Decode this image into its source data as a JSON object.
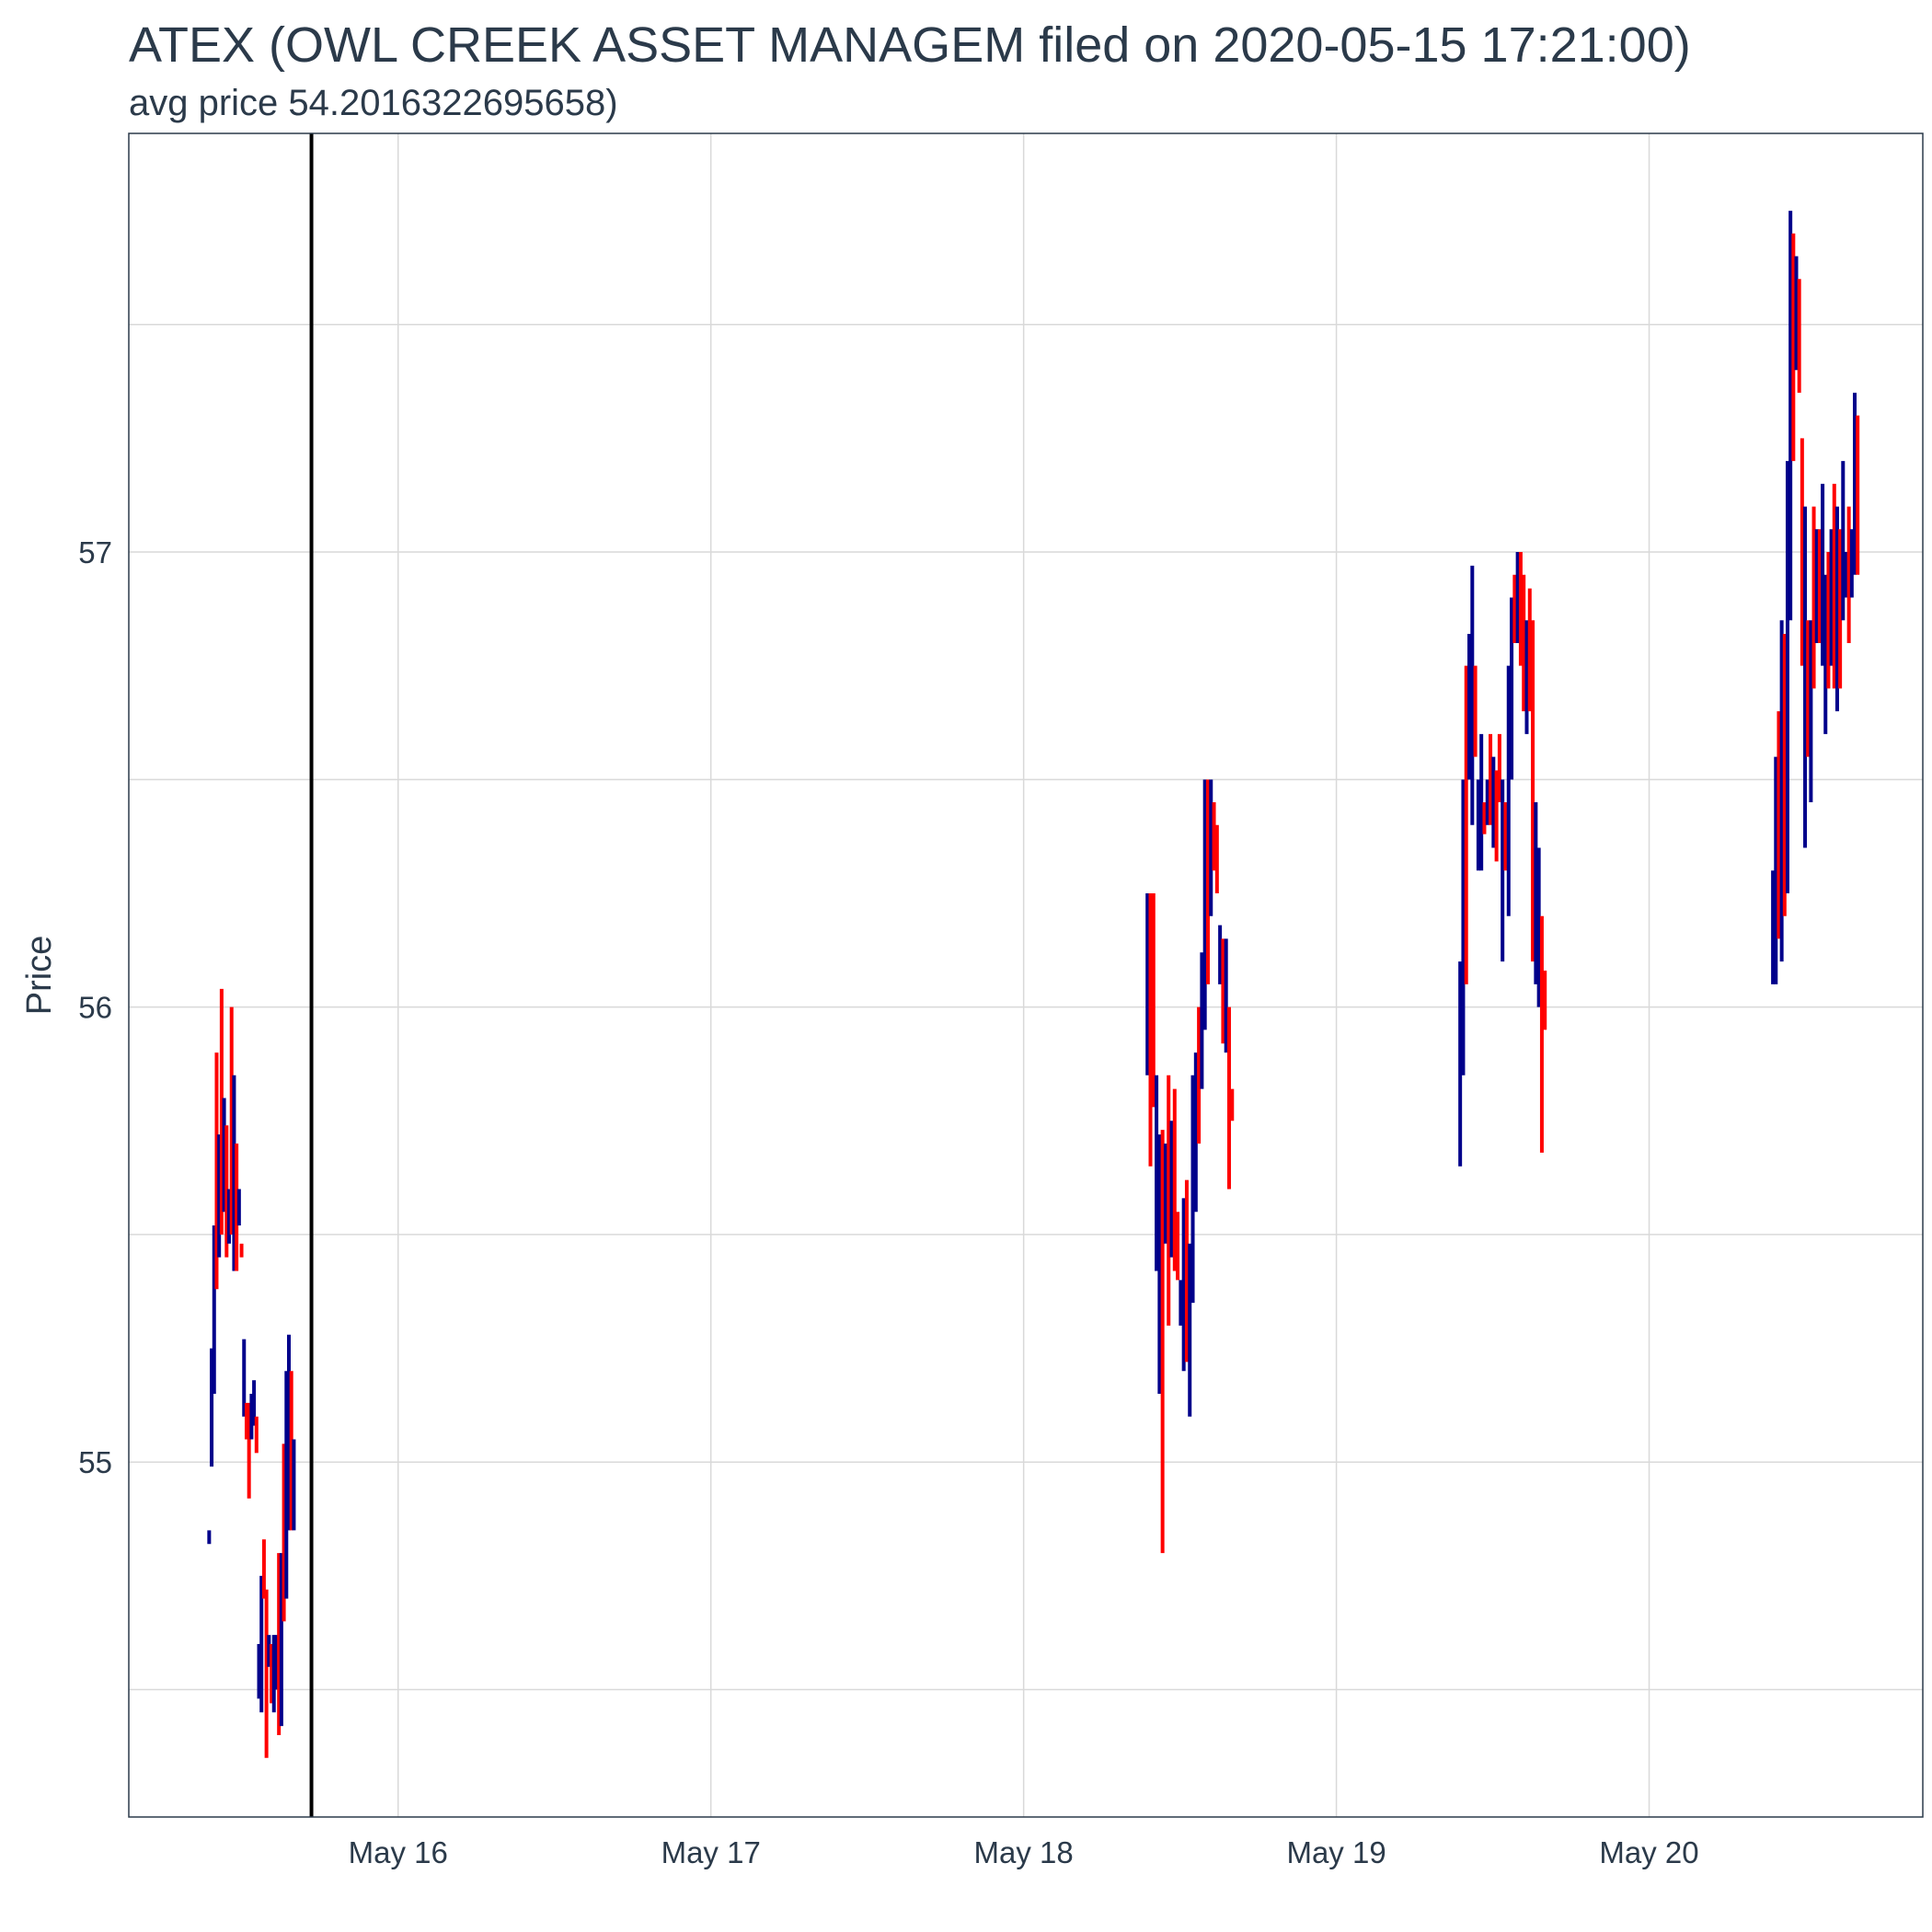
{
  "chart_data": {
    "type": "candlestick",
    "title": "ATEX (OWL CREEK ASSET MANAGEM filed on 2020-05-15 17:21:00)",
    "subtitle": "avg price 54.2016322695658)",
    "ylabel": "Price",
    "xlabel": "",
    "ylim": [
      54.22,
      57.92
    ],
    "xlim": [
      "2020-05-15 03:20",
      "2020-05-20 21:00"
    ],
    "x_ticks": [
      "2020-05-16 00:00",
      "2020-05-17 00:00",
      "2020-05-18 00:00",
      "2020-05-19 00:00",
      "2020-05-20 00:00"
    ],
    "x_tick_labels": [
      "May 16",
      "May 17",
      "May 18",
      "May 19",
      "May 20"
    ],
    "y_ticks": [
      55,
      56,
      57
    ],
    "y_tick_labels": [
      "55",
      "56",
      "57"
    ],
    "grid": true,
    "filing_marker": "2020-05-15 17:21",
    "colors": {
      "up": "#00008b",
      "down": "#ff0000",
      "marker": "#000000",
      "grid": "#d9d9d9",
      "frame": "#2b3a4a"
    },
    "series": [
      {
        "day": "2020-05-15",
        "start": "2020-05-15 09:30",
        "end": "2020-05-15 16:00",
        "lows": [
          54.82,
          54.99,
          55.15,
          55.38,
          55.45,
          55.5,
          55.55,
          55.45,
          55.48,
          55.5,
          55.42,
          55.42,
          55.52,
          55.48,
          55.1,
          55.05,
          54.92,
          55.05,
          55.08,
          55.02,
          54.48,
          54.45,
          54.7,
          54.35,
          54.62,
          54.47,
          54.45,
          54.5,
          54.4,
          54.42,
          54.65,
          54.7,
          54.85,
          54.85,
          54.85
        ],
        "highs": [
          54.85,
          55.25,
          55.52,
          55.9,
          55.72,
          56.04,
          55.8,
          55.74,
          55.6,
          56.0,
          55.85,
          55.7,
          55.6,
          55.45,
          55.27,
          55.13,
          55.13,
          55.15,
          55.18,
          55.1,
          54.6,
          54.75,
          54.83,
          54.72,
          54.55,
          54.6,
          54.62,
          54.62,
          54.8,
          54.8,
          55.04,
          55.2,
          55.28,
          55.2,
          55.05
        ],
        "up": [
          1,
          1,
          1,
          0,
          1,
          0,
          1,
          0,
          1,
          0,
          1,
          0,
          1,
          0,
          1,
          0,
          0,
          1,
          1,
          0,
          1,
          1,
          0,
          0,
          1,
          0,
          1,
          1,
          0,
          1,
          0,
          1,
          1,
          0,
          1
        ]
      },
      {
        "day": "2020-05-18",
        "start": "2020-05-18 09:30",
        "end": "2020-05-18 16:00",
        "lows": [
          55.85,
          55.65,
          55.78,
          55.42,
          55.15,
          54.8,
          55.48,
          55.3,
          55.45,
          55.42,
          55.4,
          55.3,
          55.2,
          55.22,
          55.1,
          55.35,
          55.55,
          55.7,
          55.82,
          55.95,
          56.05,
          56.2,
          56.3,
          56.25,
          56.05,
          55.92,
          55.9,
          55.6,
          55.75
        ],
        "highs": [
          56.25,
          56.25,
          56.25,
          55.85,
          55.72,
          55.73,
          55.7,
          55.85,
          55.75,
          55.82,
          55.55,
          55.4,
          55.58,
          55.62,
          55.48,
          55.85,
          55.9,
          56.0,
          56.12,
          56.5,
          56.5,
          56.5,
          56.45,
          56.4,
          56.18,
          56.15,
          56.15,
          56.0,
          55.82
        ],
        "up": [
          1,
          0,
          0,
          1,
          1,
          0,
          1,
          0,
          1,
          0,
          0,
          1,
          1,
          0,
          1,
          1,
          1,
          0,
          1,
          1,
          0,
          1,
          0,
          0,
          1,
          0,
          1,
          0,
          0
        ]
      },
      {
        "day": "2020-05-19",
        "start": "2020-05-19 09:30",
        "end": "2020-05-19 16:00",
        "lows": [
          55.65,
          55.85,
          56.05,
          56.5,
          56.4,
          56.55,
          56.3,
          56.3,
          56.38,
          56.4,
          56.4,
          56.35,
          56.32,
          56.45,
          56.1,
          56.3,
          56.2,
          56.5,
          56.8,
          56.8,
          56.75,
          56.65,
          56.6,
          56.65,
          56.1,
          56.05,
          56.0,
          55.68,
          55.95
        ],
        "highs": [
          56.1,
          56.5,
          56.75,
          56.82,
          56.97,
          56.75,
          56.5,
          56.6,
          56.45,
          56.5,
          56.6,
          56.55,
          56.52,
          56.6,
          56.5,
          56.45,
          56.75,
          56.9,
          56.95,
          57.0,
          57.0,
          56.95,
          56.85,
          56.92,
          56.85,
          56.45,
          56.35,
          56.2,
          56.08
        ],
        "up": [
          1,
          1,
          0,
          1,
          1,
          0,
          1,
          1,
          0,
          1,
          0,
          1,
          0,
          0,
          1,
          0,
          1,
          1,
          0,
          1,
          0,
          0,
          1,
          0,
          0,
          1,
          1,
          0,
          0
        ]
      },
      {
        "day": "2020-05-20",
        "start": "2020-05-20 09:30",
        "end": "2020-05-20 16:00",
        "lows": [
          56.05,
          56.05,
          56.15,
          56.1,
          56.2,
          56.25,
          56.85,
          57.2,
          57.4,
          57.35,
          56.75,
          56.35,
          56.55,
          56.45,
          56.7,
          56.8,
          56.8,
          56.75,
          56.6,
          56.7,
          56.75,
          56.7,
          56.65,
          56.7,
          56.85,
          56.9,
          56.8,
          56.9,
          56.95,
          56.95
        ],
        "highs": [
          56.3,
          56.55,
          56.65,
          56.85,
          56.82,
          57.2,
          57.75,
          57.7,
          57.65,
          57.6,
          57.25,
          57.1,
          56.85,
          56.85,
          57.1,
          57.05,
          57.05,
          57.15,
          56.95,
          57.0,
          57.05,
          57.15,
          57.1,
          57.05,
          57.2,
          57.0,
          57.1,
          57.05,
          57.35,
          57.3
        ],
        "up": [
          1,
          1,
          0,
          1,
          0,
          1,
          1,
          0,
          1,
          0,
          0,
          1,
          0,
          1,
          0,
          1,
          0,
          1,
          1,
          0,
          1,
          0,
          1,
          0,
          1,
          1,
          0,
          1,
          1,
          0
        ]
      }
    ]
  }
}
